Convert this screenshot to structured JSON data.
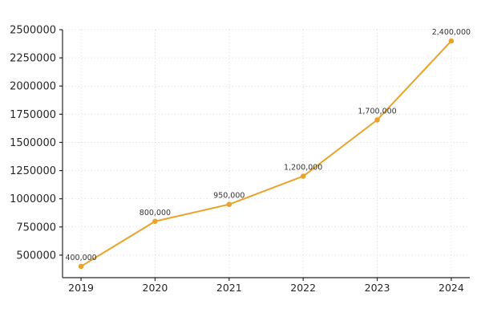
{
  "chart_data": {
    "type": "line",
    "title": "",
    "xlabel": "",
    "ylabel": "",
    "x": [
      2019,
      2020,
      2021,
      2022,
      2023,
      2024
    ],
    "series": [
      {
        "name": "value",
        "values": [
          400000,
          800000,
          950000,
          1200000,
          1700000,
          2400000
        ],
        "point_labels": [
          "400,000",
          "800,000",
          "950,000",
          "1,200,000",
          "1,700,000",
          "2,400,000"
        ]
      }
    ],
    "x_tick_labels": [
      "2019",
      "2020",
      "2021",
      "2022",
      "2023",
      "2024"
    ],
    "y_ticks": [
      500000,
      750000,
      1000000,
      1250000,
      1500000,
      1750000,
      2000000,
      2250000,
      2500000
    ],
    "y_tick_labels": [
      "500000",
      "750000",
      "1000000",
      "1250000",
      "1500000",
      "1750000",
      "2000000",
      "2250000",
      "2500000"
    ],
    "xlim": [
      2018.75,
      2024.25
    ],
    "ylim": [
      300000,
      2500000
    ],
    "grid": true,
    "grid_style": "dotted",
    "legend": "none",
    "colors": {
      "line": "#E9A32B",
      "marker": "#E9A32B",
      "grid": "#DCDCDC",
      "axis": "#262626",
      "tick_label": "#262626",
      "point_label": "#333333",
      "background": "#FFFFFF"
    }
  }
}
